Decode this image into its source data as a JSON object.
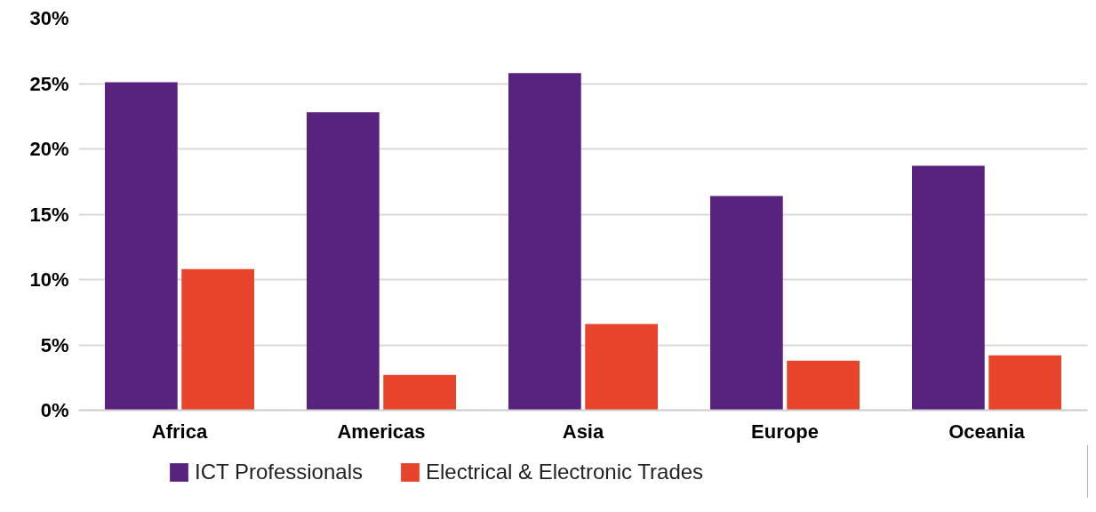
{
  "chart_data": {
    "type": "bar",
    "categories": [
      "Africa",
      "Americas",
      "Asia",
      "Europe",
      "Oceania"
    ],
    "series": [
      {
        "name": "ICT Professionals",
        "color": "#57237f",
        "values": [
          25.1,
          22.8,
          25.8,
          16.4,
          18.7
        ]
      },
      {
        "name": "Electrical & Electronic Trades",
        "color": "#e8432b",
        "values": [
          10.8,
          2.7,
          6.6,
          3.8,
          4.2
        ]
      }
    ],
    "ylim": [
      0,
      30
    ],
    "yticks": [
      {
        "value": 0,
        "label": "0%"
      },
      {
        "value": 5,
        "label": "5%"
      },
      {
        "value": 10,
        "label": "10%"
      },
      {
        "value": 15,
        "label": "15%"
      },
      {
        "value": 20,
        "label": "20%"
      },
      {
        "value": 25,
        "label": "25%"
      },
      {
        "value": 30,
        "label": "30%"
      }
    ],
    "grid": "y",
    "legend": "bottom left"
  }
}
